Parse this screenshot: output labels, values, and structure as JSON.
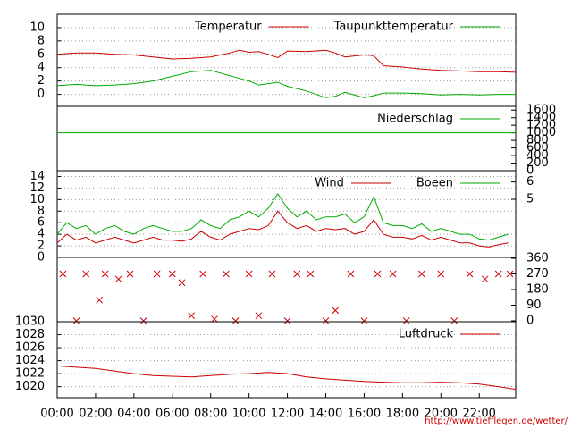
{
  "xaxis": {
    "xlim": [
      0,
      23.9
    ],
    "xticks": [
      {
        "value": 0,
        "label": "00:00"
      },
      {
        "value": 2,
        "label": "02:00"
      },
      {
        "value": 4,
        "label": "04:00"
      },
      {
        "value": 6,
        "label": "06:00"
      },
      {
        "value": 8,
        "label": "08:00"
      },
      {
        "value": 10,
        "label": "10:00"
      },
      {
        "value": 12,
        "label": "12:00"
      },
      {
        "value": 14,
        "label": "14:00"
      },
      {
        "value": 16,
        "label": "16:00"
      },
      {
        "value": 18,
        "label": "18:00"
      },
      {
        "value": 20,
        "label": "20:00"
      },
      {
        "value": 22,
        "label": "22:00"
      }
    ]
  },
  "footer": "http://www.tiefflegen.de/wetter/",
  "chart_data": [
    {
      "type": "line",
      "grid": true,
      "ylim": [
        -1.8,
        12
      ],
      "yticks": [
        0,
        2,
        4,
        6,
        8,
        10
      ],
      "x": [
        0,
        1,
        2,
        3,
        4,
        5,
        6,
        7,
        8,
        9,
        9.5,
        10,
        10.5,
        11,
        11.5,
        12,
        13,
        14,
        14.5,
        15,
        16,
        16.5,
        17,
        18,
        19,
        20,
        21,
        22,
        23,
        23.9
      ],
      "series": [
        {
          "name": "Temperatur",
          "color": "#cc0000",
          "values": [
            6,
            6.2,
            6.2,
            6,
            5.9,
            5.6,
            5.3,
            5.4,
            5.6,
            6.2,
            6.6,
            6.3,
            6.4,
            6,
            5.5,
            6.5,
            6.4,
            6.6,
            6.2,
            5.6,
            5.9,
            5.8,
            4.3,
            4.1,
            3.8,
            3.6,
            3.5,
            3.4,
            3.4,
            3.3
          ]
        },
        {
          "name": "Taupunkttemperatur",
          "color": "#00aa00",
          "values": [
            1.3,
            1.5,
            1.3,
            1.4,
            1.6,
            2,
            2.7,
            3.4,
            3.6,
            2.8,
            2.4,
            2,
            1.4,
            1.6,
            1.8,
            1.2,
            0.5,
            -0.5,
            -0.3,
            0.3,
            -0.5,
            -0.2,
            0.2,
            0.2,
            0.1,
            -0.1,
            0,
            -0.1,
            0,
            0
          ]
        }
      ]
    },
    {
      "type": "line",
      "grid": false,
      "y2lim": [
        0,
        1700
      ],
      "y2ticks": [
        0,
        200,
        400,
        600,
        800,
        1000,
        1200,
        1400,
        1600
      ],
      "x": [
        0,
        23.9
      ],
      "series": [
        {
          "name": "Niederschlag",
          "color": "#00aa00",
          "axis": "y2",
          "values": [
            1000,
            1000
          ]
        }
      ]
    },
    {
      "type": "line",
      "grid": true,
      "ylim": [
        0,
        15
      ],
      "yticks": [
        0,
        2,
        4,
        6,
        8,
        10,
        12,
        14
      ],
      "y2lim": [
        1.65,
        6.65
      ],
      "y2ticks": [
        5,
        6
      ],
      "x": [
        0,
        0.5,
        1,
        1.5,
        2,
        2.5,
        3,
        3.5,
        4,
        4.5,
        5,
        5.5,
        6,
        6.5,
        7,
        7.5,
        8,
        8.5,
        9,
        9.5,
        10,
        10.5,
        11,
        11.5,
        12,
        12.5,
        13,
        13.5,
        14,
        14.5,
        15,
        15.5,
        16,
        16.5,
        17,
        17.5,
        18,
        18.5,
        19,
        19.5,
        20,
        20.5,
        21,
        21.5,
        22,
        22.5,
        23,
        23.5
      ],
      "series": [
        {
          "name": "Wind",
          "color": "#cc0000",
          "values": [
            2.5,
            4,
            3,
            3.5,
            2.5,
            3,
            3.5,
            3,
            2.5,
            3,
            3.5,
            3,
            3,
            2.8,
            3.2,
            4.5,
            3.5,
            3,
            4,
            4.5,
            5,
            4.8,
            5.5,
            8,
            6,
            5,
            5.5,
            4.5,
            5,
            4.8,
            5,
            4,
            4.5,
            6.5,
            4,
            3.5,
            3.5,
            3.2,
            3.8,
            3,
            3.5,
            3,
            2.5,
            2.5,
            2,
            1.8,
            2.2,
            2.5
          ]
        },
        {
          "name": "Boeen",
          "color": "#00aa00",
          "values": [
            4,
            6,
            5,
            5.5,
            4,
            5,
            5.5,
            4.5,
            4,
            5,
            5.5,
            5,
            4.5,
            4.5,
            5,
            6.5,
            5.5,
            5,
            6.5,
            7,
            8,
            7,
            8.5,
            11,
            8.5,
            7,
            8,
            6.5,
            7,
            7,
            7.5,
            6,
            7,
            10.5,
            6,
            5.5,
            5.5,
            5,
            5.8,
            4.5,
            5,
            4.5,
            4,
            4,
            3.2,
            3,
            3.5,
            4
          ]
        }
      ]
    },
    {
      "type": "scatter",
      "grid": false,
      "y2lim": [
        -5,
        365
      ],
      "y2ticks": [
        0,
        90,
        180,
        270,
        360
      ],
      "x": [
        0.3,
        1,
        1.5,
        2.2,
        2.5,
        3.2,
        3.8,
        4.5,
        5.2,
        6,
        6.5,
        7,
        7.6,
        8.2,
        8.8,
        9.3,
        10,
        10.5,
        11.2,
        12,
        12.5,
        13.2,
        14,
        14.5,
        15.3,
        16,
        16.7,
        17.5,
        18.2,
        19,
        20,
        20.7,
        21.5,
        22.3,
        23,
        23.6
      ],
      "series": [
        {
          "color": "#cc0000",
          "axis": "y2",
          "values": [
            270,
            0,
            270,
            120,
            270,
            240,
            270,
            0,
            270,
            270,
            220,
            30,
            270,
            10,
            270,
            0,
            270,
            30,
            270,
            0,
            270,
            270,
            0,
            60,
            270,
            0,
            270,
            270,
            0,
            270,
            270,
            0,
            270,
            240,
            270,
            270
          ]
        }
      ]
    },
    {
      "type": "line",
      "grid": true,
      "ylim": [
        1018.3,
        1030
      ],
      "yticks": [
        1020,
        1022,
        1024,
        1026,
        1028,
        1030
      ],
      "x": [
        0,
        1,
        2,
        3,
        4,
        5,
        6,
        7,
        8,
        9,
        10,
        11,
        12,
        13,
        14,
        15,
        16,
        17,
        18,
        19,
        20,
        21,
        22,
        23,
        23.9
      ],
      "series": [
        {
          "name": "Luftdruck",
          "color": "#cc0000",
          "values": [
            1023.2,
            1023,
            1022.8,
            1022.4,
            1022,
            1021.7,
            1021.6,
            1021.5,
            1021.7,
            1021.9,
            1022,
            1022.2,
            1022,
            1021.5,
            1021.2,
            1021,
            1020.8,
            1020.7,
            1020.6,
            1020.6,
            1020.7,
            1020.6,
            1020.4,
            1020,
            1019.6
          ]
        }
      ]
    }
  ]
}
